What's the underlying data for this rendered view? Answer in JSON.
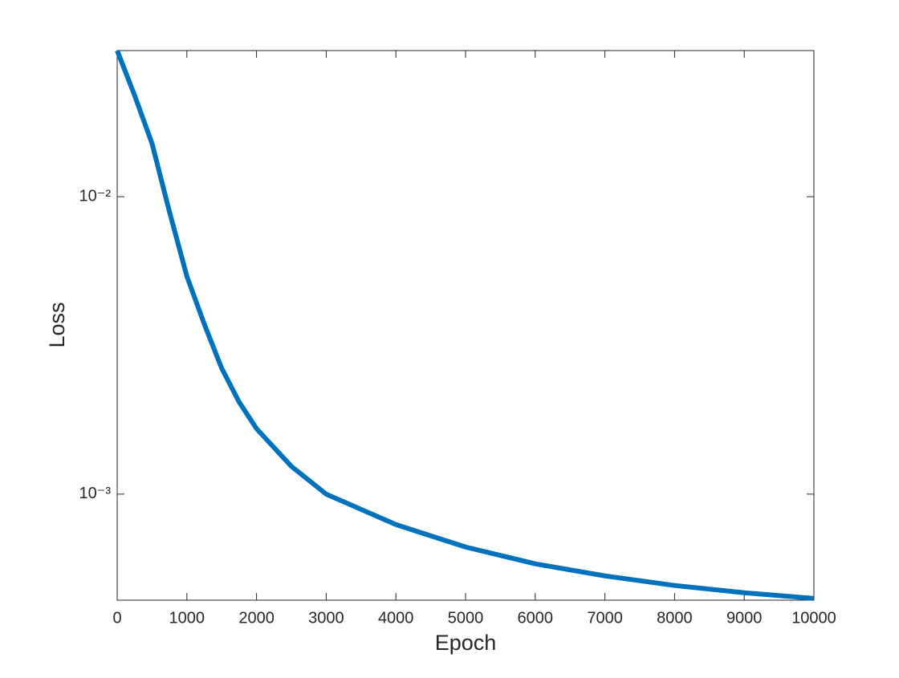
{
  "chart_data": {
    "type": "line",
    "x_label": "Epoch",
    "y_label": "Loss",
    "log_y": true,
    "x": [
      0,
      250,
      500,
      750,
      1000,
      1250,
      1500,
      1750,
      2000,
      2500,
      3000,
      4000,
      5000,
      6000,
      7000,
      8000,
      9000,
      10000
    ],
    "series": [
      {
        "color": "#0072bd",
        "values": [
          0.031,
          0.0219,
          0.0151,
          0.0089,
          0.0054,
          0.00373,
          0.00265,
          0.00204,
          0.00166,
          0.00124,
          0.001,
          0.00079,
          0.000664,
          0.000583,
          0.000531,
          0.000493,
          0.000466,
          0.000446
        ]
      }
    ],
    "xlim": [
      0,
      10000
    ],
    "xticks": [
      0,
      1000,
      2000,
      3000,
      4000,
      5000,
      6000,
      7000,
      8000,
      9000,
      10000
    ],
    "ylim": [
      0.00044,
      0.031
    ],
    "yticks": [
      {
        "value": 0.001,
        "label": "10⁻³"
      },
      {
        "value": 0.01,
        "label": "10⁻²"
      }
    ]
  }
}
